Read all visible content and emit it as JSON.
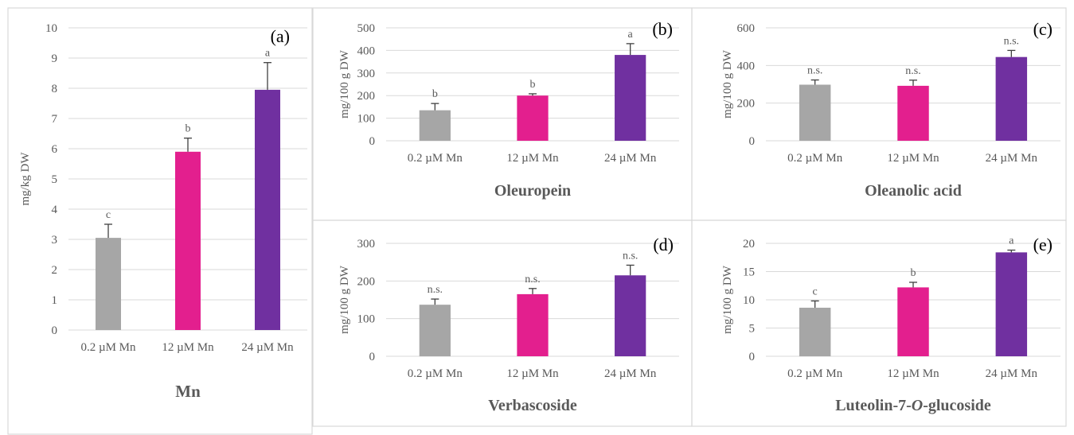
{
  "colors": {
    "grid": "#d9d9d9",
    "axis_text": "#595959",
    "letter": "#595959",
    "title": "#595959",
    "panel_border": "#d9d9d9",
    "error": "#404040"
  },
  "chart_data": [
    {
      "type": "bar",
      "panel_label": "(a)",
      "title": "Mn",
      "ylabel": "mg/kg DW",
      "ylim": [
        0,
        10
      ],
      "yticks": [
        0,
        1,
        2,
        3,
        4,
        5,
        6,
        7,
        8,
        9,
        10
      ],
      "categories": [
        "0.2 µM Mn",
        "12 µM Mn",
        "24 µM Mn"
      ],
      "values": [
        3.05,
        5.9,
        7.95
      ],
      "errors": [
        0.45,
        0.45,
        0.9
      ],
      "letters": [
        "c",
        "b",
        "a"
      ],
      "colors": [
        "#a6a6a6",
        "#e31f8e",
        "#7030a0"
      ],
      "grid": true
    },
    {
      "type": "bar",
      "panel_label": "(b)",
      "title": "Oleuropein",
      "ylabel": "mg/100 g DW",
      "ylim": [
        0,
        500
      ],
      "yticks": [
        0,
        100,
        200,
        300,
        400,
        500
      ],
      "categories": [
        "0.2 µM Mn",
        "12 µM Mn",
        "24 µM Mn"
      ],
      "values": [
        135,
        200,
        380
      ],
      "errors": [
        30,
        8,
        50
      ],
      "letters": [
        "b",
        "b",
        "a"
      ],
      "colors": [
        "#a6a6a6",
        "#e31f8e",
        "#7030a0"
      ],
      "grid": true
    },
    {
      "type": "bar",
      "panel_label": "(c)",
      "title": "Oleanolic acid",
      "ylabel": "mg/100 g DW",
      "ylim": [
        0,
        600
      ],
      "yticks": [
        0,
        200,
        400,
        600
      ],
      "categories": [
        "0.2 µM Mn",
        "12 µM Mn",
        "24 µM Mn"
      ],
      "values": [
        298,
        292,
        445
      ],
      "errors": [
        25,
        30,
        35
      ],
      "letters": [
        "n.s.",
        "n.s.",
        "n.s."
      ],
      "colors": [
        "#a6a6a6",
        "#e31f8e",
        "#7030a0"
      ],
      "grid": true
    },
    {
      "type": "bar",
      "panel_label": "(d)",
      "title": "Verbascoside",
      "ylabel": "mg/100 g DW",
      "ylim": [
        0,
        300
      ],
      "yticks": [
        0,
        100,
        200,
        300
      ],
      "categories": [
        "0.2 µM Mn",
        "12 µM Mn",
        "24 µM Mn"
      ],
      "values": [
        137,
        165,
        215
      ],
      "errors": [
        15,
        15,
        27
      ],
      "letters": [
        "n.s.",
        "n.s.",
        "n.s."
      ],
      "colors": [
        "#a6a6a6",
        "#e31f8e",
        "#7030a0"
      ],
      "grid": true
    },
    {
      "type": "bar",
      "panel_label": "(e)",
      "title": "Luteolin-7-O-glucoside",
      "title_parts": [
        "Luteolin-7-",
        "O",
        "-glucoside"
      ],
      "ylabel": "mg/100 g DW",
      "ylim": [
        0,
        20
      ],
      "yticks": [
        0,
        5,
        10,
        15,
        20
      ],
      "categories": [
        "0.2 µM Mn",
        "12 µM Mn",
        "24 µM Mn"
      ],
      "values": [
        8.6,
        12.2,
        18.4
      ],
      "errors": [
        1.2,
        0.9,
        0.4
      ],
      "letters": [
        "c",
        "b",
        "a"
      ],
      "colors": [
        "#a6a6a6",
        "#e31f8e",
        "#7030a0"
      ],
      "grid": true
    }
  ]
}
